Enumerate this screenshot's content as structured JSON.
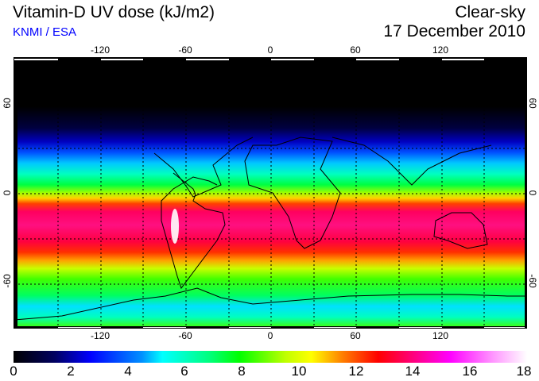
{
  "header": {
    "title": "Vitamin-D UV dose (kJ/m2)",
    "source": "KNMI / ESA",
    "condition": "Clear-sky",
    "date": "17 December 2010"
  },
  "map": {
    "lon_ticks": [
      "-120",
      "-60",
      "0",
      "60",
      "120"
    ],
    "lat_ticks": [
      "60",
      "0",
      "-60"
    ]
  },
  "colorbar": {
    "min": 0,
    "max": 18,
    "unit": "kJ/m2",
    "labels": [
      "0",
      "2",
      "4",
      "6",
      "8",
      "10",
      "12",
      "14",
      "16",
      "18"
    ],
    "colors": [
      "#000000",
      "#0000ff",
      "#00ffff",
      "#00ff00",
      "#ffff00",
      "#ff0000",
      "#ff00ff",
      "#ffffff"
    ]
  }
}
